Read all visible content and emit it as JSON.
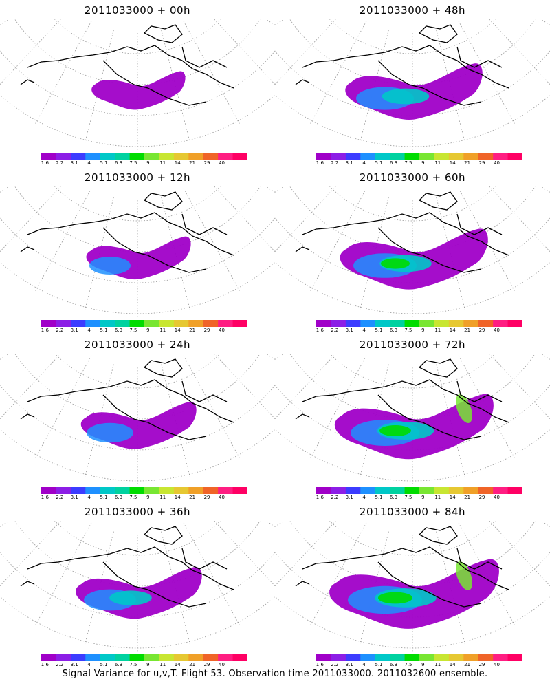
{
  "panels": [
    {
      "title": "2011033000 + 00h",
      "intensity": 0.15
    },
    {
      "title": "2011033000 + 48h",
      "intensity": 0.55
    },
    {
      "title": "2011033000 + 12h",
      "intensity": 0.25
    },
    {
      "title": "2011033000 + 60h",
      "intensity": 0.65
    },
    {
      "title": "2011033000 + 24h",
      "intensity": 0.35
    },
    {
      "title": "2011033000 + 72h",
      "intensity": 0.75
    },
    {
      "title": "2011033000 + 36h",
      "intensity": 0.45
    },
    {
      "title": "2011033000 + 84h",
      "intensity": 0.85
    }
  ],
  "colorbar": {
    "labels": [
      "1.6",
      "2.2",
      "3.1",
      "4",
      "5.1",
      "6.3",
      "7.5",
      "9",
      "11",
      "14",
      "21",
      "29",
      "40"
    ],
    "colors": [
      "#a000c8",
      "#8c1ee6",
      "#3c3cff",
      "#1e90ff",
      "#00c8c8",
      "#00d2a0",
      "#00dc00",
      "#78e632",
      "#c8e632",
      "#e6c832",
      "#f0a028",
      "#f06428",
      "#ff1e82",
      "#ff0064"
    ]
  },
  "footer": "Signal Variance for u,v,T. Flight 53. Observation time 2011033000. 2011032600 ensemble."
}
